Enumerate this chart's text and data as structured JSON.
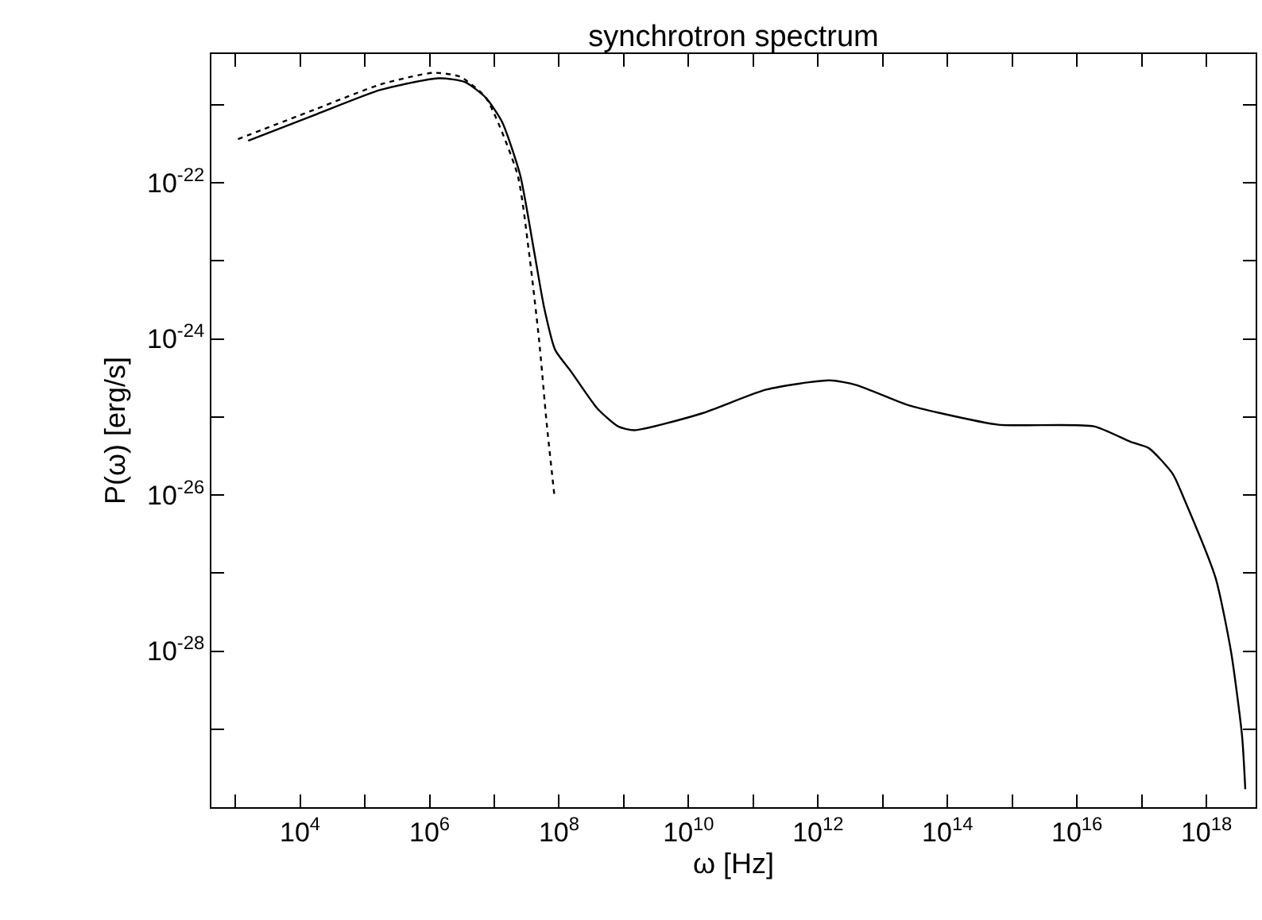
{
  "chart_data": {
    "type": "line",
    "title": "synchrotron spectrum",
    "xlabel": "ω [Hz]",
    "ylabel": "P(ω) [erg/s]",
    "log": "xy",
    "marker": "none",
    "xlim": [
      427,
      5.75e+18
    ],
    "ylim": [
      1e-30,
      4.47e-21
    ],
    "xticks": [
      {
        "value": 1000.0,
        "label": null
      },
      {
        "value": 10000.0,
        "label": "10$^{4}$"
      },
      {
        "value": 100000.0,
        "label": null
      },
      {
        "value": 1000000.0,
        "label": "10$^{6}$"
      },
      {
        "value": 10000000.0,
        "label": null
      },
      {
        "value": 100000000.0,
        "label": "10$^{8}$"
      },
      {
        "value": 1000000000.0,
        "label": null
      },
      {
        "value": 10000000000.0,
        "label": "10$^{10}$"
      },
      {
        "value": 100000000000.0,
        "label": null
      },
      {
        "value": 1000000000000.0,
        "label": "10$^{12}$"
      },
      {
        "value": 10000000000000.0,
        "label": null
      },
      {
        "value": 100000000000000.0,
        "label": "10$^{14}$"
      },
      {
        "value": 1000000000000000.0,
        "label": null
      },
      {
        "value": 1e+16,
        "label": "10$^{16}$"
      },
      {
        "value": 1e+17,
        "label": null
      },
      {
        "value": 1e+18,
        "label": "10$^{18}$"
      }
    ],
    "yticks": [
      {
        "value": 1e-21,
        "label": null
      },
      {
        "value": 1e-22,
        "label": "10$^{-22}$"
      },
      {
        "value": 1e-23,
        "label": null
      },
      {
        "value": 1e-24,
        "label": "10$^{-24}$"
      },
      {
        "value": 1e-25,
        "label": null
      },
      {
        "value": 1e-26,
        "label": "10$^{-26}$"
      },
      {
        "value": 1e-27,
        "label": null
      },
      {
        "value": 1e-28,
        "label": "10$^{-28}$"
      },
      {
        "value": 1e-29,
        "label": null
      }
    ],
    "series": [
      {
        "color": "#000000",
        "line_style": "solid",
        "x": [
          1580.0,
          18200.0,
          174000.0,
          1380000.0,
          3550000.0,
          7410000.0,
          13200000.0,
          25100000.0,
          40700000.0,
          58900000.0,
          87100000.0,
          151000000.0,
          389000000.0,
          813000000.0,
          1450000000.0,
          16600000000.0,
          158000000000.0,
          1510000000000.0,
          3890000000000.0,
          25100000000000.0,
          77600000000000.0,
          617000000000000.0,
          1.82e+16,
          6.76e+16,
          1.29e+17,
          3.02e+17,
          4.47e+17,
          1.38e+18,
          2.4e+18,
          3.55e+18,
          3.98e+18
        ],
        "values": [
          3.47e-22,
          7.59e-22,
          1.55e-21,
          2.19e-21,
          1.95e-21,
          1.23e-21,
          6.03e-22,
          1.26e-22,
          1.41e-23,
          2.51e-24,
          7.24e-25,
          3.89e-25,
          1.29e-25,
          7.59e-26,
          6.76e-26,
          1.12e-25,
          2.24e-25,
          2.95e-25,
          2.57e-25,
          1.41e-25,
          1.12e-25,
          7.94e-26,
          7.59e-26,
          4.79e-26,
          3.98e-26,
          1.86e-26,
          9.12e-27,
          8.71e-28,
          9.77e-29,
          8.13e-30,
          1.7e-30
        ]
      },
      {
        "color": "#000000",
        "line_style": "dotted",
        "x": [
          1100.0,
          18200.0,
          174000.0,
          1150000.0,
          2950000.0,
          7410000.0,
          22900000.0,
          33900000.0,
          49000000.0,
          64600000.0,
          85100000.0
        ],
        "values": [
          3.63e-22,
          8.91e-22,
          1.82e-21,
          2.57e-21,
          2.29e-21,
          1.23e-21,
          1.26e-22,
          1.41e-23,
          1e-24,
          8.13e-26,
          9.55e-27
        ]
      }
    ]
  }
}
